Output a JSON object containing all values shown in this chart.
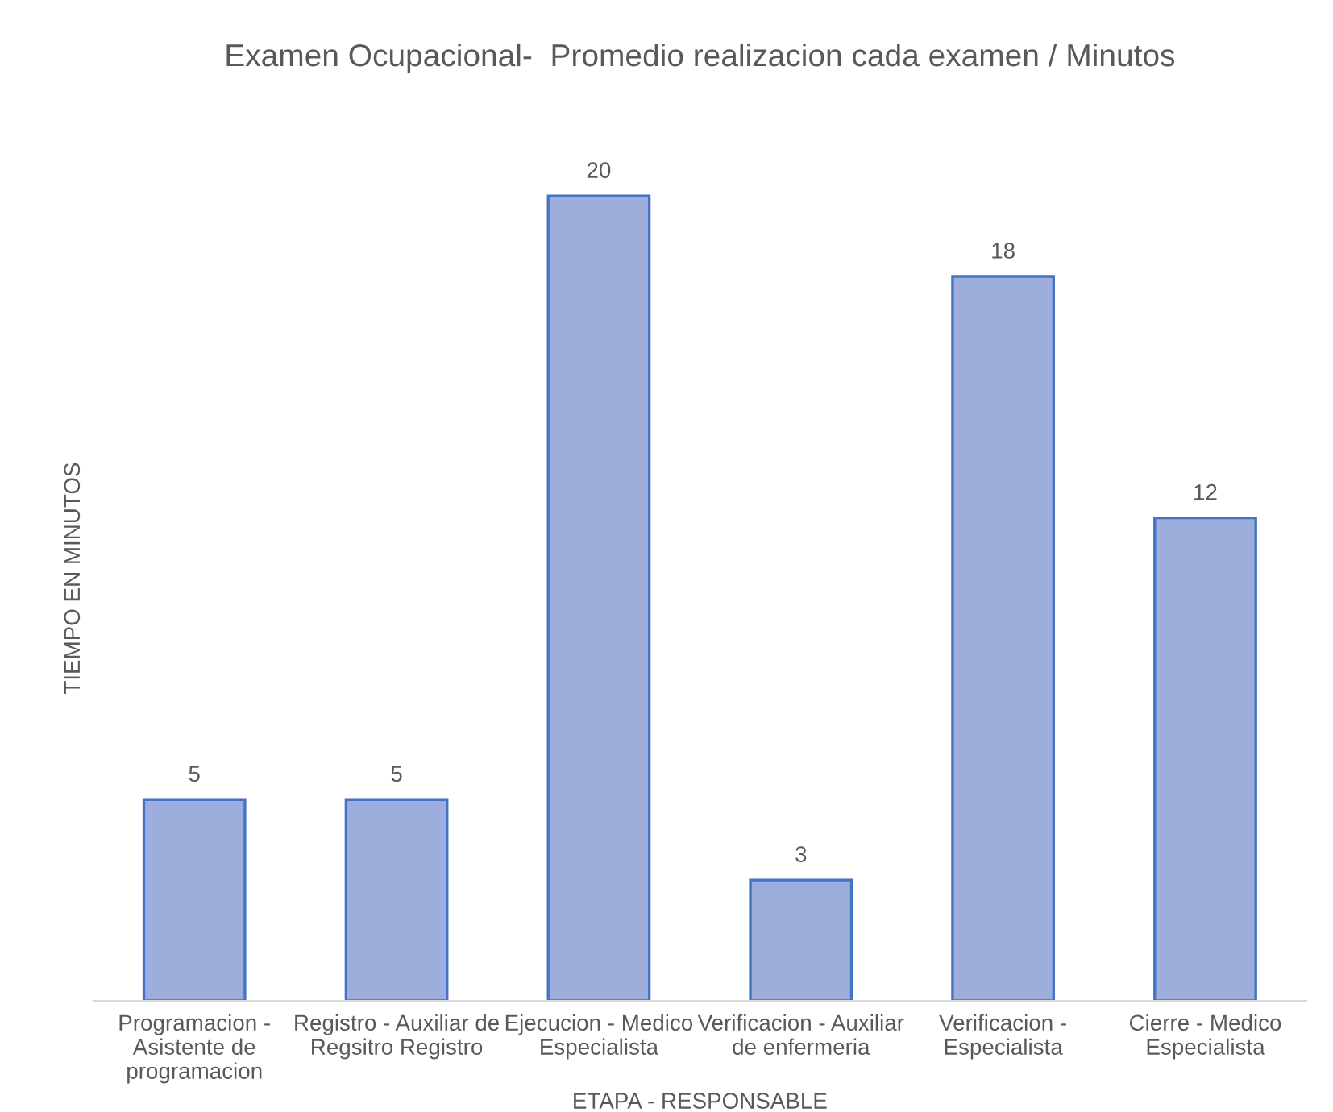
{
  "chart_data": {
    "type": "bar",
    "title": "Examen Ocupacional-  Promedio realizacion cada examen / Minutos",
    "xlabel": "ETAPA - RESPONSABLE",
    "ylabel": "TIEMPO EN MINUTOS",
    "categories": [
      "Programacion -\nAsistente de\nprogramacion",
      "Registro - Auxiliar de\nRegsitro Registro",
      "Ejecucion - Medico\nEspecialista",
      "Verificacion - Auxiliar\nde enfermeria",
      "Verificacion -\nEspecialista",
      "Cierre - Medico\nEspecialista"
    ],
    "values": [
      5,
      5,
      20,
      3,
      18,
      12
    ],
    "color": "#9eaedc",
    "data_labels": true,
    "grid": false,
    "legend": false
  }
}
